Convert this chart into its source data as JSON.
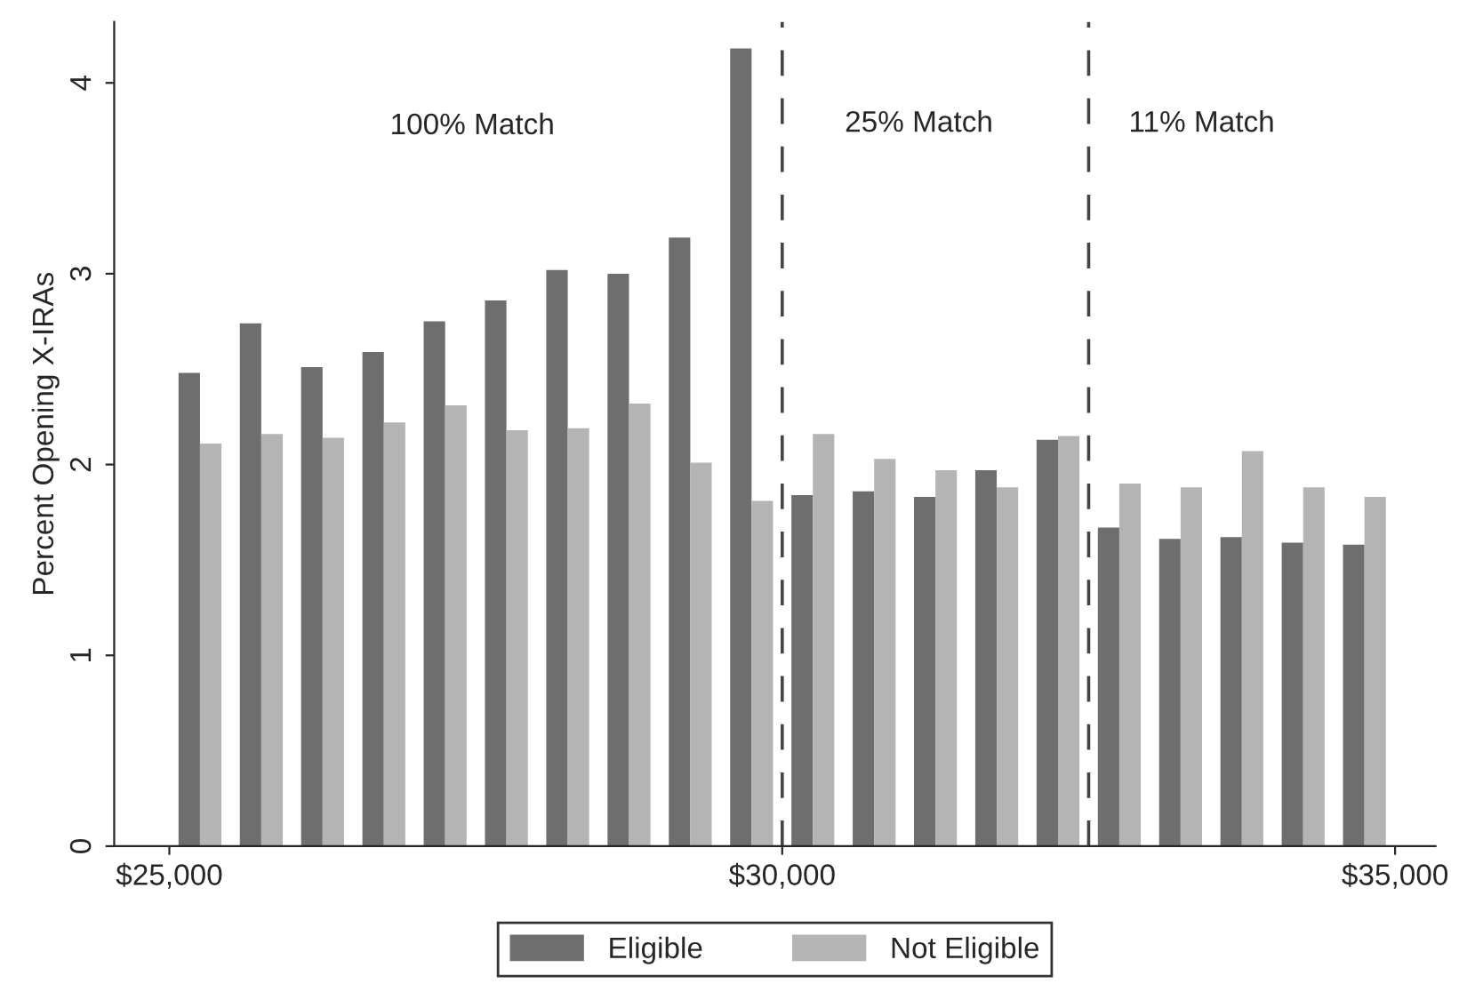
{
  "chart_data": {
    "type": "bar",
    "ylabel": "Percent Opening X-IRAs",
    "x": [
      25250,
      25750,
      26250,
      26750,
      27250,
      27750,
      28250,
      28750,
      29250,
      29750,
      30250,
      30750,
      31250,
      31750,
      32250,
      32750,
      33250,
      33750,
      34250,
      34750
    ],
    "series": [
      {
        "name": "Eligible",
        "color": "#6e6e6e",
        "values": [
          2.48,
          2.74,
          2.51,
          2.59,
          2.75,
          2.86,
          3.02,
          3.0,
          3.19,
          4.18,
          1.84,
          1.86,
          1.83,
          1.97,
          2.13,
          1.67,
          1.61,
          1.62,
          1.59,
          1.58
        ]
      },
      {
        "name": "Not Eligible",
        "color": "#b4b4b4",
        "values": [
          2.11,
          2.16,
          2.14,
          2.22,
          2.31,
          2.18,
          2.19,
          2.32,
          2.01,
          1.81,
          2.16,
          2.03,
          1.97,
          1.88,
          2.15,
          1.9,
          1.88,
          2.07,
          1.88,
          1.83
        ]
      }
    ],
    "xlim": [
      24550,
      35330
    ],
    "xticks": [
      {
        "value": 25000,
        "label": "$25,000"
      },
      {
        "value": 30000,
        "label": "$30,000"
      },
      {
        "value": 35000,
        "label": "$35,000"
      }
    ],
    "ylim": [
      0,
      4.32
    ],
    "yticks": [
      0,
      1,
      2,
      3,
      4
    ],
    "ref_lines": [
      {
        "axis": "x",
        "value": 30000,
        "color": "#444444",
        "line_style": "dashed"
      },
      {
        "axis": "x",
        "value": 32500,
        "color": "#444444",
        "line_style": "dashed"
      }
    ],
    "annotations": [
      "100% Match",
      "25% Match",
      "11% Match"
    ],
    "grid": false,
    "legend": "bottom"
  }
}
